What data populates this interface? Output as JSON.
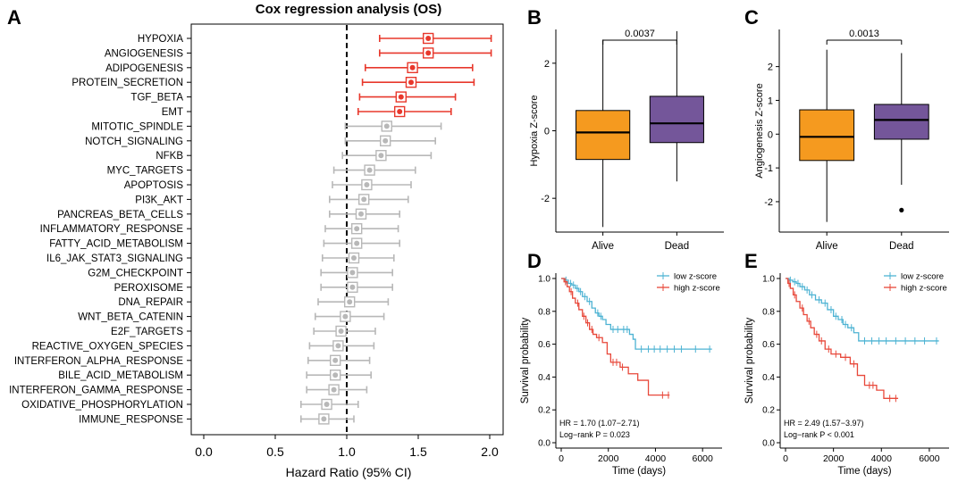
{
  "panels": {
    "a": "A",
    "b": "B",
    "c": "C",
    "d": "D",
    "e": "E"
  },
  "chart_data": [
    {
      "id": "forest",
      "type": "forest",
      "title": "Cox regression analysis (OS)",
      "xlabel": "Hazard Ratio (95% CI)",
      "xlim": [
        0.0,
        2.0
      ],
      "xticks": [
        "0.0",
        "0.5",
        "1.0",
        "1.5",
        "2.0"
      ],
      "reference_line": 1.0,
      "colors": {
        "significant": "#e8382c",
        "nonsignificant": "#b8b8b8"
      },
      "rows": [
        {
          "label": "HYPOXIA",
          "hr": 1.57,
          "lo": 1.23,
          "hi": 2.01,
          "sig": true
        },
        {
          "label": "ANGIOGENESIS",
          "hr": 1.57,
          "lo": 1.23,
          "hi": 2.01,
          "sig": true
        },
        {
          "label": "ADIPOGENESIS",
          "hr": 1.46,
          "lo": 1.13,
          "hi": 1.88,
          "sig": true
        },
        {
          "label": "PROTEIN_SECRETION",
          "hr": 1.45,
          "lo": 1.11,
          "hi": 1.89,
          "sig": true
        },
        {
          "label": "TGF_BETA",
          "hr": 1.38,
          "lo": 1.09,
          "hi": 1.76,
          "sig": true
        },
        {
          "label": "EMT",
          "hr": 1.37,
          "lo": 1.08,
          "hi": 1.73,
          "sig": true
        },
        {
          "label": "MITOTIC_SPINDLE",
          "hr": 1.28,
          "lo": 0.99,
          "hi": 1.66,
          "sig": false
        },
        {
          "label": "NOTCH_SIGNALING",
          "hr": 1.27,
          "lo": 0.99,
          "hi": 1.62,
          "sig": false
        },
        {
          "label": "NFKB",
          "hr": 1.24,
          "lo": 0.97,
          "hi": 1.59,
          "sig": false
        },
        {
          "label": "MYC_TARGETS",
          "hr": 1.16,
          "lo": 0.91,
          "hi": 1.48,
          "sig": false
        },
        {
          "label": "APOPTOSIS",
          "hr": 1.14,
          "lo": 0.9,
          "hi": 1.45,
          "sig": false
        },
        {
          "label": "PI3K_AKT",
          "hr": 1.12,
          "lo": 0.88,
          "hi": 1.43,
          "sig": false
        },
        {
          "label": "PANCREAS_BETA_CELLS",
          "hr": 1.1,
          "lo": 0.88,
          "hi": 1.37,
          "sig": false
        },
        {
          "label": "INFLAMMATORY_RESPONSE",
          "hr": 1.07,
          "lo": 0.85,
          "hi": 1.36,
          "sig": false
        },
        {
          "label": "FATTY_ACID_METABOLISM",
          "hr": 1.07,
          "lo": 0.84,
          "hi": 1.37,
          "sig": false
        },
        {
          "label": "IL6_JAK_STAT3_SIGNALING",
          "hr": 1.05,
          "lo": 0.83,
          "hi": 1.33,
          "sig": false
        },
        {
          "label": "G2M_CHECKPOINT",
          "hr": 1.04,
          "lo": 0.82,
          "hi": 1.32,
          "sig": false
        },
        {
          "label": "PEROXISOME",
          "hr": 1.04,
          "lo": 0.82,
          "hi": 1.32,
          "sig": false
        },
        {
          "label": "DNA_REPAIR",
          "hr": 1.02,
          "lo": 0.8,
          "hi": 1.29,
          "sig": false
        },
        {
          "label": "WNT_BETA_CATENIN",
          "hr": 0.99,
          "lo": 0.78,
          "hi": 1.26,
          "sig": false
        },
        {
          "label": "E2F_TARGETS",
          "hr": 0.96,
          "lo": 0.77,
          "hi": 1.2,
          "sig": false
        },
        {
          "label": "REACTIVE_OXYGEN_SPECIES",
          "hr": 0.94,
          "lo": 0.74,
          "hi": 1.19,
          "sig": false
        },
        {
          "label": "INTERFERON_ALPHA_RESPONSE",
          "hr": 0.92,
          "lo": 0.73,
          "hi": 1.16,
          "sig": false
        },
        {
          "label": "BILE_ACID_METABOLISM",
          "hr": 0.92,
          "lo": 0.72,
          "hi": 1.17,
          "sig": false
        },
        {
          "label": "INTERFERON_GAMMA_RESPONSE",
          "hr": 0.91,
          "lo": 0.72,
          "hi": 1.14,
          "sig": false
        },
        {
          "label": "OXIDATIVE_PHOSPHORYLATION",
          "hr": 0.86,
          "lo": 0.68,
          "hi": 1.08,
          "sig": false
        },
        {
          "label": "IMMUNE_RESPONSE",
          "hr": 0.84,
          "lo": 0.68,
          "hi": 1.05,
          "sig": false
        }
      ]
    },
    {
      "id": "box-hypoxia",
      "type": "boxplot",
      "ylabel": "Hypoxia Z-score",
      "ylim": [
        -3.0,
        3.0
      ],
      "yticks": [
        "-2",
        "0",
        "2"
      ],
      "pvalue": "0.0037",
      "groups": [
        {
          "label": "Alive",
          "color": "#f59a1f",
          "min": -2.85,
          "q1": -0.85,
          "median": -0.05,
          "q3": 0.6,
          "max": 2.7,
          "outliers": []
        },
        {
          "label": "Dead",
          "color": "#74569a",
          "min": -1.5,
          "q1": -0.35,
          "median": 0.22,
          "q3": 1.02,
          "max": 2.95,
          "outliers": []
        }
      ]
    },
    {
      "id": "box-angiogenesis",
      "type": "boxplot",
      "ylabel": "Angiogenesis Z-score",
      "ylim": [
        -2.9,
        3.1
      ],
      "yticks": [
        "-2",
        "-1",
        "0",
        "1",
        "2"
      ],
      "pvalue": "0.0013",
      "groups": [
        {
          "label": "Alive",
          "color": "#f59a1f",
          "min": -2.6,
          "q1": -0.78,
          "median": -0.08,
          "q3": 0.72,
          "max": 2.5,
          "outliers": []
        },
        {
          "label": "Dead",
          "color": "#74569a",
          "min": -1.5,
          "q1": -0.15,
          "median": 0.42,
          "q3": 0.88,
          "max": 2.4,
          "outliers": [
            -2.25
          ]
        }
      ]
    },
    {
      "id": "km-hypoxia",
      "type": "km",
      "xlabel": "Time (days)",
      "ylabel": "Survival probability",
      "xlim": [
        0,
        6600
      ],
      "ylim": [
        0,
        1.0
      ],
      "xticks": [
        "0",
        "2000",
        "4000",
        "6000"
      ],
      "yticks": [
        "0.0",
        "0.2",
        "0.4",
        "0.6",
        "0.8",
        "1.0"
      ],
      "hr_text": "HR = 1.70 (1.07−2.71)",
      "p_text": "Log−rank P = 0.023",
      "series": [
        {
          "name": "low z-score",
          "color": "#4db3d3",
          "steps": [
            [
              0,
              1.0
            ],
            [
              150,
              0.99
            ],
            [
              300,
              0.97
            ],
            [
              450,
              0.96
            ],
            [
              600,
              0.94
            ],
            [
              750,
              0.92
            ],
            [
              900,
              0.89
            ],
            [
              1100,
              0.86
            ],
            [
              1300,
              0.82
            ],
            [
              1450,
              0.79
            ],
            [
              1600,
              0.77
            ],
            [
              1750,
              0.75
            ],
            [
              1900,
              0.72
            ],
            [
              2100,
              0.69
            ],
            [
              2500,
              0.69
            ],
            [
              2900,
              0.66
            ],
            [
              3050,
              0.63
            ],
            [
              3150,
              0.57
            ],
            [
              6400,
              0.57
            ]
          ],
          "censors": [
            [
              200,
              0.99
            ],
            [
              400,
              0.97
            ],
            [
              520,
              0.96
            ],
            [
              680,
              0.94
            ],
            [
              820,
              0.92
            ],
            [
              1000,
              0.89
            ],
            [
              1200,
              0.86
            ],
            [
              1550,
              0.79
            ],
            [
              1680,
              0.77
            ],
            [
              2200,
              0.69
            ],
            [
              2400,
              0.69
            ],
            [
              2650,
              0.69
            ],
            [
              2800,
              0.69
            ],
            [
              3400,
              0.57
            ],
            [
              3700,
              0.57
            ],
            [
              3950,
              0.57
            ],
            [
              4200,
              0.57
            ],
            [
              4500,
              0.57
            ],
            [
              4800,
              0.57
            ],
            [
              5100,
              0.57
            ],
            [
              5700,
              0.57
            ],
            [
              6300,
              0.57
            ]
          ]
        },
        {
          "name": "high z-score",
          "color": "#e8483a",
          "steps": [
            [
              0,
              1.0
            ],
            [
              120,
              0.98
            ],
            [
              250,
              0.95
            ],
            [
              350,
              0.92
            ],
            [
              480,
              0.88
            ],
            [
              600,
              0.85
            ],
            [
              750,
              0.81
            ],
            [
              900,
              0.77
            ],
            [
              1050,
              0.73
            ],
            [
              1200,
              0.69
            ],
            [
              1350,
              0.66
            ],
            [
              1500,
              0.64
            ],
            [
              1750,
              0.61
            ],
            [
              1950,
              0.54
            ],
            [
              2100,
              0.49
            ],
            [
              2500,
              0.46
            ],
            [
              2850,
              0.42
            ],
            [
              3250,
              0.38
            ],
            [
              3700,
              0.29
            ],
            [
              4600,
              0.29
            ]
          ],
          "censors": [
            [
              180,
              0.98
            ],
            [
              420,
              0.92
            ],
            [
              700,
              0.85
            ],
            [
              960,
              0.77
            ],
            [
              1120,
              0.73
            ],
            [
              1300,
              0.69
            ],
            [
              1600,
              0.64
            ],
            [
              2200,
              0.49
            ],
            [
              2350,
              0.49
            ],
            [
              2600,
              0.46
            ],
            [
              4300,
              0.29
            ],
            [
              4550,
              0.29
            ]
          ]
        }
      ]
    },
    {
      "id": "km-angiogenesis",
      "type": "km",
      "xlabel": "Time (days)",
      "ylabel": "Survival probability",
      "xlim": [
        0,
        6600
      ],
      "ylim": [
        0,
        1.0
      ],
      "xticks": [
        "0",
        "2000",
        "4000",
        "6000"
      ],
      "yticks": [
        "0.0",
        "0.2",
        "0.4",
        "0.6",
        "0.8",
        "1.0"
      ],
      "hr_text": "HR = 2.49 (1.57−3.97)",
      "p_text": "Log−rank P < 0.001",
      "series": [
        {
          "name": "low z-score",
          "color": "#4db3d3",
          "steps": [
            [
              0,
              1.0
            ],
            [
              150,
              0.99
            ],
            [
              300,
              0.98
            ],
            [
              450,
              0.97
            ],
            [
              600,
              0.95
            ],
            [
              800,
              0.93
            ],
            [
              1000,
              0.9
            ],
            [
              1250,
              0.87
            ],
            [
              1500,
              0.85
            ],
            [
              1750,
              0.81
            ],
            [
              2000,
              0.77
            ],
            [
              2200,
              0.75
            ],
            [
              2400,
              0.72
            ],
            [
              2600,
              0.7
            ],
            [
              2850,
              0.67
            ],
            [
              3050,
              0.62
            ],
            [
              6400,
              0.62
            ]
          ],
          "censors": [
            [
              200,
              0.99
            ],
            [
              380,
              0.98
            ],
            [
              520,
              0.97
            ],
            [
              700,
              0.95
            ],
            [
              900,
              0.93
            ],
            [
              1100,
              0.9
            ],
            [
              1400,
              0.87
            ],
            [
              1650,
              0.85
            ],
            [
              1900,
              0.81
            ],
            [
              2100,
              0.77
            ],
            [
              2350,
              0.75
            ],
            [
              2500,
              0.72
            ],
            [
              2750,
              0.7
            ],
            [
              3300,
              0.62
            ],
            [
              3600,
              0.62
            ],
            [
              3900,
              0.62
            ],
            [
              4200,
              0.62
            ],
            [
              4600,
              0.62
            ],
            [
              5000,
              0.62
            ],
            [
              5400,
              0.62
            ],
            [
              5800,
              0.62
            ],
            [
              6300,
              0.62
            ]
          ]
        },
        {
          "name": "high z-score",
          "color": "#e8483a",
          "steps": [
            [
              0,
              1.0
            ],
            [
              100,
              0.97
            ],
            [
              200,
              0.94
            ],
            [
              320,
              0.9
            ],
            [
              450,
              0.86
            ],
            [
              600,
              0.82
            ],
            [
              750,
              0.78
            ],
            [
              900,
              0.74
            ],
            [
              1050,
              0.7
            ],
            [
              1200,
              0.66
            ],
            [
              1400,
              0.62
            ],
            [
              1650,
              0.57
            ],
            [
              1900,
              0.54
            ],
            [
              2300,
              0.52
            ],
            [
              2700,
              0.48
            ],
            [
              3000,
              0.41
            ],
            [
              3300,
              0.35
            ],
            [
              3800,
              0.32
            ],
            [
              4100,
              0.27
            ],
            [
              4700,
              0.27
            ]
          ],
          "censors": [
            [
              150,
              0.97
            ],
            [
              380,
              0.9
            ],
            [
              700,
              0.82
            ],
            [
              980,
              0.74
            ],
            [
              1300,
              0.66
            ],
            [
              1500,
              0.62
            ],
            [
              1800,
              0.57
            ],
            [
              2100,
              0.54
            ],
            [
              2500,
              0.52
            ],
            [
              2850,
              0.48
            ],
            [
              3500,
              0.35
            ],
            [
              3650,
              0.35
            ],
            [
              4350,
              0.27
            ],
            [
              4600,
              0.27
            ]
          ]
        }
      ]
    }
  ]
}
